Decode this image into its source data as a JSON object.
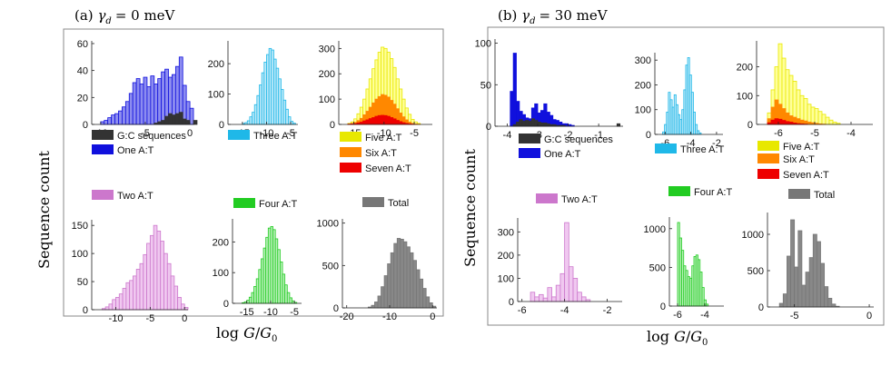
{
  "panels": [
    {
      "prefix": "(a)",
      "math": "γ",
      "sub": "d",
      "value": "= 0 meV",
      "ylabel": "Sequence count",
      "xlabel_log": "log",
      "xlabel_G": "G",
      "xlabel_slash": "/",
      "xlabel_G0": "G",
      "xlabel_sub": "0"
    },
    {
      "prefix": "(b)",
      "math": "γ",
      "sub": "d",
      "value": "= 30 meV",
      "ylabel": "Sequence count",
      "xlabel_log": "log",
      "xlabel_G": "G",
      "xlabel_slash": "/",
      "xlabel_G0": "G",
      "xlabel_sub": "0"
    }
  ],
  "colors": {
    "gc": "#333333",
    "one": "#1010dd",
    "one_fill": "#8c8cf0",
    "two": "#cc77cc",
    "two_fill": "#f0c8f0",
    "three": "#1fb8e8",
    "three_fill": "#bde9f9",
    "four": "#22cc22",
    "four_fill": "#b8f0b8",
    "five": "#e8e800",
    "five_fill": "#ffff99",
    "six": "#ff8800",
    "seven": "#ee0000",
    "total": "#777777",
    "total_fill": "#888888"
  },
  "chart_data": [
    {
      "type": "bar",
      "id": "a1",
      "panel": "a",
      "xticks": [
        -10,
        -5,
        0
      ],
      "xlim": [
        -11,
        0.5
      ],
      "yticks": [
        0,
        20,
        40,
        60
      ],
      "ylim": [
        0,
        62
      ],
      "series": [
        {
          "name": "One A:T",
          "color": "one",
          "x0": -10,
          "step": 0.4,
          "values": [
            2,
            3,
            5,
            7,
            8,
            10,
            13,
            17,
            23,
            31,
            34,
            30,
            35,
            28,
            36,
            30,
            34,
            39,
            41,
            35,
            37,
            43,
            50,
            29,
            17,
            12
          ]
        },
        {
          "name": "G:C sequences",
          "color": "gc",
          "x0": -5.2,
          "step": 0.4,
          "values": [
            0,
            0,
            0,
            1,
            2,
            3,
            6,
            8,
            7,
            8,
            9,
            4,
            3,
            0,
            3
          ]
        }
      ],
      "legend": [
        "G:C sequences",
        "One A:T"
      ]
    },
    {
      "type": "bar",
      "id": "a3",
      "panel": "a",
      "xticks": [
        -15,
        -10,
        -5
      ],
      "xlim": [
        -18,
        -3.5
      ],
      "yticks": [
        0,
        100,
        200
      ],
      "ylim": [
        0,
        275
      ],
      "series": [
        {
          "name": "Three A:T",
          "color": "three",
          "x0": -15,
          "step": 0.5,
          "values": [
            3,
            6,
            12,
            25,
            40,
            65,
            95,
            130,
            170,
            205,
            230,
            250,
            245,
            215,
            185,
            150,
            115,
            80,
            50,
            25,
            10,
            4
          ]
        }
      ],
      "legend": [
        "Three A:T"
      ]
    },
    {
      "type": "bar",
      "id": "a5",
      "panel": "a",
      "xticks": [
        -15,
        -10,
        -5
      ],
      "xlim": [
        -17.5,
        -2
      ],
      "yticks": [
        0,
        100,
        200,
        300
      ],
      "ylim": [
        0,
        330
      ],
      "series": [
        {
          "name": "Five A:T",
          "color": "five",
          "x0": -16,
          "step": 0.5,
          "values": [
            4,
            10,
            22,
            42,
            68,
            100,
            140,
            180,
            220,
            255,
            285,
            305,
            300,
            285,
            260,
            225,
            180,
            140,
            100,
            65,
            40,
            20,
            10,
            4
          ]
        },
        {
          "name": "Six A:T",
          "color": "six",
          "x0": -16,
          "step": 0.5,
          "values": [
            2,
            4,
            8,
            15,
            24,
            38,
            52,
            68,
            85,
            100,
            110,
            118,
            115,
            108,
            95,
            80,
            62,
            45,
            30,
            18,
            9,
            4,
            2,
            1
          ]
        },
        {
          "name": "Seven A:T",
          "color": "seven",
          "x0": -16,
          "step": 0.5,
          "values": [
            1,
            2,
            3,
            6,
            9,
            14,
            18,
            23,
            27,
            32,
            35,
            36,
            35,
            32,
            27,
            22,
            16,
            11,
            7,
            4,
            2,
            1,
            0,
            0
          ]
        }
      ],
      "legend": [
        "Five A:T",
        "Six A:T",
        "Seven A:T"
      ]
    },
    {
      "type": "bar",
      "id": "a2",
      "panel": "a",
      "xticks": [
        -10,
        -5,
        0
      ],
      "xlim": [
        -13.5,
        0.5
      ],
      "yticks": [
        0,
        50,
        100,
        150
      ],
      "ylim": [
        0,
        160
      ],
      "series": [
        {
          "name": "Two A:T",
          "color": "two",
          "x0": -12,
          "step": 0.5,
          "values": [
            2,
            5,
            10,
            18,
            22,
            28,
            38,
            48,
            52,
            60,
            72,
            82,
            98,
            118,
            132,
            150,
            140,
            122,
            100,
            82,
            60,
            42,
            22,
            10,
            4
          ]
        }
      ],
      "legend": [
        "Two A:T"
      ]
    },
    {
      "type": "bar",
      "id": "a4",
      "panel": "a",
      "xticks": [
        -15,
        -10,
        -5
      ],
      "xlim": [
        -18,
        -3.5
      ],
      "yticks": [
        0,
        100,
        200
      ],
      "ylim": [
        0,
        275
      ],
      "series": [
        {
          "name": "Four A:T",
          "color": "four",
          "x0": -16,
          "step": 0.5,
          "values": [
            2,
            5,
            10,
            20,
            35,
            55,
            80,
            110,
            145,
            180,
            215,
            245,
            250,
            240,
            210,
            175,
            135,
            95,
            60,
            35,
            18,
            8,
            3
          ]
        }
      ],
      "legend": [
        "Four A:T"
      ]
    },
    {
      "type": "bar",
      "id": "a6",
      "panel": "a",
      "xticks": [
        -20,
        -10,
        0
      ],
      "xlim": [
        -21,
        1
      ],
      "yticks": [
        0,
        500,
        1000
      ],
      "ylim": [
        0,
        1050
      ],
      "series": [
        {
          "name": "Total",
          "color": "total",
          "x0": -15,
          "step": 0.75,
          "values": [
            10,
            30,
            70,
            140,
            250,
            380,
            520,
            650,
            760,
            820,
            810,
            780,
            720,
            650,
            560,
            450,
            340,
            230,
            130,
            60,
            20
          ]
        }
      ],
      "legend": [
        "Total"
      ]
    },
    {
      "type": "bar",
      "id": "b1",
      "panel": "b",
      "xticks": [
        -4,
        -3,
        -2,
        -1
      ],
      "xlim": [
        -4.4,
        -0.2
      ],
      "yticks": [
        0,
        50,
        100
      ],
      "ylim": [
        0,
        105
      ],
      "series": [
        {
          "name": "One A:T",
          "color": "one",
          "x0": -3.9,
          "step": 0.1,
          "values": [
            42,
            88,
            30,
            18,
            14,
            10,
            9,
            22,
            27,
            16,
            19,
            27,
            17,
            13,
            8,
            7,
            5,
            3,
            3,
            2,
            1
          ]
        },
        {
          "name": "G:C sequences",
          "color": "gc",
          "x0": -3.9,
          "step": 0.1,
          "values": [
            0,
            2,
            5,
            8,
            6,
            7,
            6,
            9,
            7,
            5,
            4,
            4,
            3,
            2,
            2,
            1,
            1,
            1,
            0,
            0,
            0,
            0,
            0,
            0,
            0,
            0,
            0,
            0,
            0,
            0,
            0,
            0,
            0,
            0,
            0,
            3
          ]
        }
      ],
      "legend": [
        "G:C sequences",
        "One A:T"
      ]
    },
    {
      "type": "bar",
      "id": "b3",
      "panel": "b",
      "xticks": [
        -6,
        -4,
        -2
      ],
      "xlim": [
        -6.8,
        -1.5
      ],
      "yticks": [
        0,
        100,
        200,
        300
      ],
      "ylim": [
        0,
        330
      ],
      "series": [
        {
          "name": "Three A:T",
          "color": "three",
          "x0": -6.2,
          "step": 0.15,
          "values": [
            10,
            40,
            90,
            170,
            140,
            110,
            160,
            120,
            80,
            60,
            100,
            180,
            280,
            310,
            240,
            170,
            90,
            40,
            15,
            6
          ]
        }
      ],
      "legend": [
        "Three A:T"
      ]
    },
    {
      "type": "bar",
      "id": "b5",
      "panel": "b",
      "xticks": [
        -6,
        -5,
        -4
      ],
      "xlim": [
        -6.6,
        -3.4
      ],
      "yticks": [
        0,
        100,
        200
      ],
      "ylim": [
        0,
        290
      ],
      "series": [
        {
          "name": "Five A:T",
          "color": "five",
          "x0": -6.3,
          "step": 0.1,
          "values": [
            40,
            120,
            200,
            280,
            230,
            190,
            170,
            150,
            120,
            100,
            90,
            70,
            60,
            55,
            45,
            35,
            25,
            15,
            8,
            4
          ]
        },
        {
          "name": "Six A:T",
          "color": "six",
          "x0": -6.3,
          "step": 0.1,
          "values": [
            20,
            60,
            85,
            70,
            55,
            40,
            30,
            25,
            20,
            15,
            12,
            8,
            6,
            4,
            2,
            1
          ]
        },
        {
          "name": "Seven A:T",
          "color": "seven",
          "x0": -6.3,
          "step": 0.1,
          "values": [
            6,
            15,
            20,
            18,
            14,
            10,
            8,
            5,
            3,
            2,
            1
          ]
        }
      ],
      "legend": [
        "Five A:T",
        "Six A:T",
        "Seven A:T"
      ]
    },
    {
      "type": "bar",
      "id": "b2",
      "panel": "b",
      "xticks": [
        -6,
        -4,
        -2
      ],
      "xlim": [
        -6.2,
        -1.3
      ],
      "yticks": [
        0,
        100,
        200,
        300
      ],
      "ylim": [
        0,
        360
      ],
      "series": [
        {
          "name": "Two A:T",
          "color": "two",
          "x0": -5.6,
          "step": 0.2,
          "values": [
            40,
            20,
            30,
            15,
            60,
            20,
            70,
            120,
            340,
            150,
            100,
            40,
            20,
            8
          ]
        }
      ],
      "legend": [
        "Two A:T"
      ]
    },
    {
      "type": "bar",
      "id": "b4",
      "panel": "b",
      "xticks": [
        -6,
        -4
      ],
      "xlim": [
        -6.6,
        -2.6
      ],
      "yticks": [
        0,
        500,
        1000
      ],
      "ylim": [
        0,
        1150
      ],
      "series": [
        {
          "name": "Four A:T",
          "color": "four",
          "x0": -6.0,
          "step": 0.15,
          "values": [
            1080,
            880,
            720,
            520,
            460,
            380,
            360,
            520,
            640,
            660,
            600,
            440,
            240,
            80,
            25
          ]
        }
      ],
      "legend": [
        "Four A:T"
      ]
    },
    {
      "type": "bar",
      "id": "b6",
      "panel": "b",
      "xticks": [
        -5,
        0
      ],
      "xlim": [
        -6.8,
        0.3
      ],
      "yticks": [
        0,
        500,
        1000
      ],
      "ylim": [
        0,
        1300
      ],
      "series": [
        {
          "name": "Total",
          "color": "total",
          "x0": -6.0,
          "step": 0.25,
          "values": [
            50,
            180,
            700,
            1200,
            550,
            1050,
            300,
            480,
            680,
            1000,
            900,
            600,
            280,
            120,
            40,
            10
          ]
        }
      ],
      "legend": [
        "Total"
      ]
    }
  ]
}
